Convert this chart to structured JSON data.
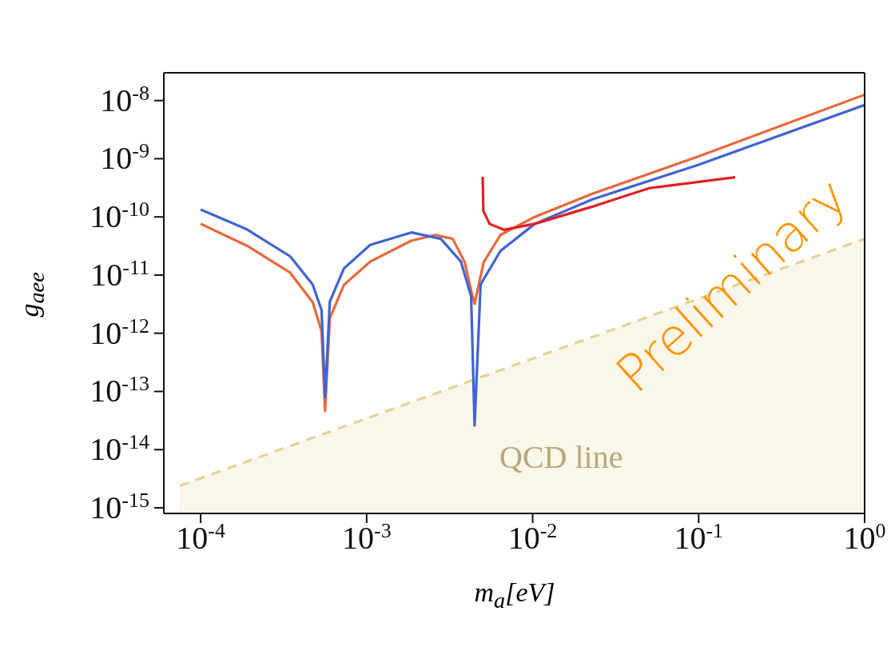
{
  "chart_data": {
    "type": "line",
    "xlabel": "m$_{a}$[eV]",
    "ylabel": "g$_{aee}$",
    "log": "xy",
    "marker": "none",
    "xlim": [
      6e-05,
      1
    ],
    "ylim": [
      8e-16,
      3e-08
    ],
    "xticks": [
      {
        "value": 0.0001,
        "label": "10$^{-4}$"
      },
      {
        "value": 0.001,
        "label": "10$^{-3}$"
      },
      {
        "value": 0.01,
        "label": "10$^{-2}$"
      },
      {
        "value": 0.1,
        "label": "10$^{-1}$"
      },
      {
        "value": 1,
        "label": "10$^{0}$"
      }
    ],
    "yticks": [
      {
        "value": 1e-15,
        "label": "10$^{-15}$"
      },
      {
        "value": 1e-14,
        "label": "10$^{-14}$"
      },
      {
        "value": 1e-13,
        "label": "10$^{-13}$"
      },
      {
        "value": 1e-12,
        "label": "10$^{-12}$"
      },
      {
        "value": 1e-11,
        "label": "10$^{-11}$"
      },
      {
        "value": 1e-10,
        "label": "10$^{-10}$"
      },
      {
        "value": 1e-09,
        "label": "10$^{-9}$"
      },
      {
        "value": 1e-08,
        "label": "10$^{-8}$"
      }
    ],
    "series": [
      {
        "type": "area",
        "name": "QCD line",
        "color": "#e6d197",
        "line_style": "dashed",
        "x": [
          7.5e-05,
          1
        ],
        "values": [
          2.4e-15,
          4.2e-11
        ]
      },
      {
        "color": "#e8683a",
        "line_style": "solid",
        "x": [
          0.0001,
          0.00019,
          0.000346,
          0.000473,
          0.000535,
          0.000562,
          0.0006,
          0.00073,
          0.00105,
          0.00186,
          0.0026,
          0.0033,
          0.0039,
          0.00426,
          0.00447,
          0.00507,
          0.0064,
          0.0103,
          0.0229,
          0.1,
          1
        ],
        "values": [
          7.6e-11,
          3.2e-11,
          1.1e-11,
          3.4e-12,
          1.1e-12,
          4.6e-14,
          1.8e-12,
          6.8e-12,
          1.7e-11,
          3.9e-11,
          4.9e-11,
          4.2e-11,
          1.66e-11,
          5.4e-12,
          3.2e-12,
          1.66e-11,
          4.9e-11,
          1e-10,
          2.5e-10,
          1.1e-09,
          1.26e-08
        ]
      },
      {
        "color": "#3f63d3",
        "line_style": "solid",
        "x": [
          0.0001,
          0.00019,
          0.000346,
          0.000473,
          0.000535,
          0.000562,
          0.0006,
          0.00073,
          0.00105,
          0.00186,
          0.0028,
          0.0037,
          0.00426,
          0.00447,
          0.00486,
          0.0064,
          0.0103,
          0.0229,
          0.1,
          1
        ],
        "values": [
          1.34e-10,
          6.1e-11,
          2.1e-11,
          6.9e-12,
          2.5e-12,
          7.9e-14,
          3.5e-12,
          1.3e-11,
          3.3e-11,
          5.4e-11,
          4.2e-11,
          1.7e-11,
          4.3e-12,
          2.6e-14,
          6.9e-12,
          2.6e-11,
          7.6e-11,
          2e-10,
          7.9e-10,
          8.4e-09
        ]
      },
      {
        "color": "#dd2222",
        "line_style": "solid",
        "x": [
          0.005,
          0.00505,
          0.0055,
          0.0067,
          0.0103,
          0.0229,
          0.05,
          0.166
        ],
        "values": [
          4.9e-10,
          1.26e-10,
          7.6e-11,
          6e-11,
          7.6e-11,
          1.5e-10,
          3.1e-10,
          4.8e-10
        ]
      }
    ],
    "annotations": [
      "Preliminary"
    ]
  }
}
